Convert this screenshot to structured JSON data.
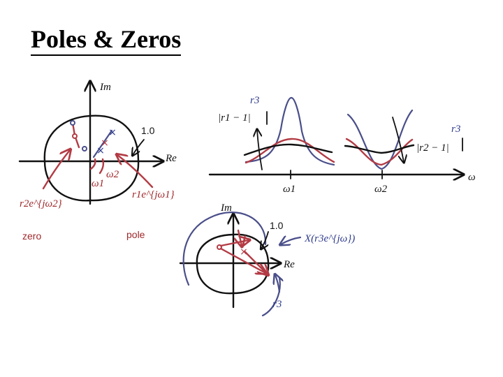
{
  "title": "Poles & Zeros",
  "diagram1": {
    "im_label": "Im",
    "re_label": "Re",
    "radius_label": "1.0",
    "omega1_label": "ω1",
    "omega2_label": "ω2",
    "zero_label": "r2e^{jω2}",
    "pole_label": "r1e^{jω1}",
    "zero_caption": "zero",
    "pole_caption": "pole"
  },
  "diagram2": {
    "r3_left": "r3",
    "r1_label": "|r1 − 1|",
    "r3_right": "r3",
    "r2_label": "|r2 − 1|",
    "omega_axis": "ω",
    "omega1_tick": "ω1",
    "omega2_tick": "ω2"
  },
  "diagram3": {
    "im_label": "Im",
    "re_label": "Re",
    "radius_label": "1.0",
    "x_label": "X(r3e^{jω})",
    "r3_label": "r3"
  },
  "colors": {
    "ink": "#111111",
    "red": "#b33b44",
    "blue": "#4a4f8a"
  }
}
